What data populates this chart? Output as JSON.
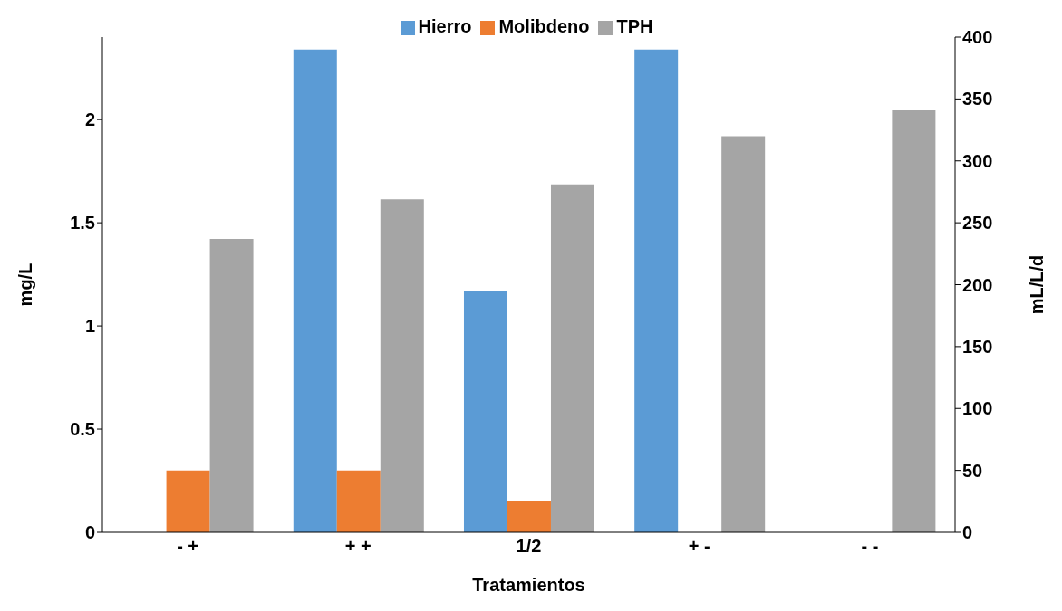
{
  "chart_data": {
    "type": "bar",
    "xlabel": "Tratamientos",
    "ylabel": "mg/L",
    "y2label": "mL/L/d",
    "categories": [
      "- +",
      "+ +",
      "1/2",
      "+ -",
      "- -"
    ],
    "series": [
      {
        "name": "Hierro",
        "color": "#5b9bd5",
        "values": [
          0,
          2.34,
          1.17,
          2.34,
          0
        ]
      },
      {
        "name": "Molibdeno",
        "color": "#ed7d31",
        "values": [
          0.3,
          0.3,
          0.15,
          0,
          0
        ]
      },
      {
        "name": "TPH",
        "color": "#a5a5a5",
        "axis": "y2",
        "values": [
          237,
          269,
          281,
          320,
          341
        ]
      }
    ],
    "ylim": [
      0,
      2.4
    ],
    "yticks": [
      0,
      0.5,
      1,
      1.5,
      2
    ],
    "y2lim": [
      0,
      400
    ],
    "y2ticks": [
      0,
      50,
      100,
      150,
      200,
      250,
      300,
      350,
      400
    ],
    "legend": "top",
    "grid": false
  }
}
